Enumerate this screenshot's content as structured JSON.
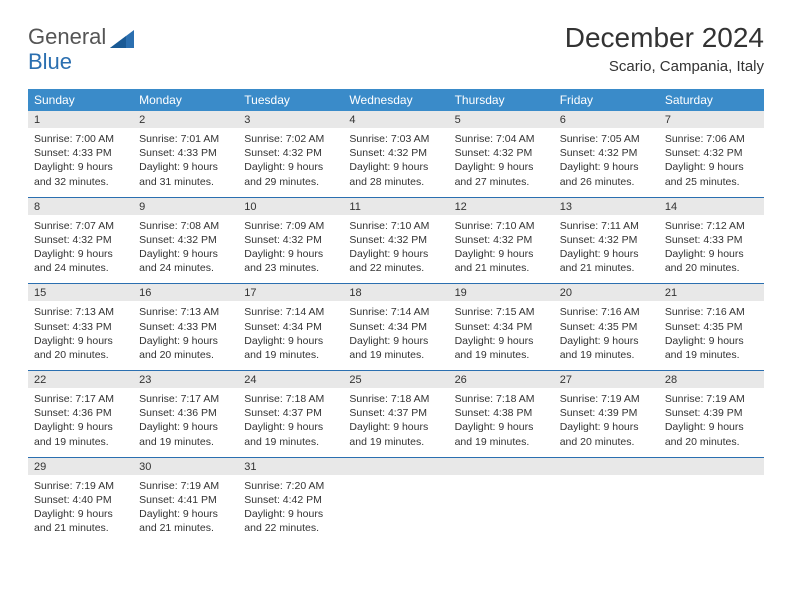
{
  "brand": {
    "word1": "General",
    "word2": "Blue"
  },
  "title": "December 2024",
  "location": "Scario, Campania, Italy",
  "colors": {
    "header_bg": "#3a8bc9",
    "rule": "#2b6fb0",
    "daynum_bg": "#e8e8e8",
    "text": "#333333"
  },
  "weekdays": [
    "Sunday",
    "Monday",
    "Tuesday",
    "Wednesday",
    "Thursday",
    "Friday",
    "Saturday"
  ],
  "weeks": [
    [
      {
        "n": "1",
        "sunrise": "Sunrise: 7:00 AM",
        "sunset": "Sunset: 4:33 PM",
        "d1": "Daylight: 9 hours",
        "d2": "and 32 minutes."
      },
      {
        "n": "2",
        "sunrise": "Sunrise: 7:01 AM",
        "sunset": "Sunset: 4:33 PM",
        "d1": "Daylight: 9 hours",
        "d2": "and 31 minutes."
      },
      {
        "n": "3",
        "sunrise": "Sunrise: 7:02 AM",
        "sunset": "Sunset: 4:32 PM",
        "d1": "Daylight: 9 hours",
        "d2": "and 29 minutes."
      },
      {
        "n": "4",
        "sunrise": "Sunrise: 7:03 AM",
        "sunset": "Sunset: 4:32 PM",
        "d1": "Daylight: 9 hours",
        "d2": "and 28 minutes."
      },
      {
        "n": "5",
        "sunrise": "Sunrise: 7:04 AM",
        "sunset": "Sunset: 4:32 PM",
        "d1": "Daylight: 9 hours",
        "d2": "and 27 minutes."
      },
      {
        "n": "6",
        "sunrise": "Sunrise: 7:05 AM",
        "sunset": "Sunset: 4:32 PM",
        "d1": "Daylight: 9 hours",
        "d2": "and 26 minutes."
      },
      {
        "n": "7",
        "sunrise": "Sunrise: 7:06 AM",
        "sunset": "Sunset: 4:32 PM",
        "d1": "Daylight: 9 hours",
        "d2": "and 25 minutes."
      }
    ],
    [
      {
        "n": "8",
        "sunrise": "Sunrise: 7:07 AM",
        "sunset": "Sunset: 4:32 PM",
        "d1": "Daylight: 9 hours",
        "d2": "and 24 minutes."
      },
      {
        "n": "9",
        "sunrise": "Sunrise: 7:08 AM",
        "sunset": "Sunset: 4:32 PM",
        "d1": "Daylight: 9 hours",
        "d2": "and 24 minutes."
      },
      {
        "n": "10",
        "sunrise": "Sunrise: 7:09 AM",
        "sunset": "Sunset: 4:32 PM",
        "d1": "Daylight: 9 hours",
        "d2": "and 23 minutes."
      },
      {
        "n": "11",
        "sunrise": "Sunrise: 7:10 AM",
        "sunset": "Sunset: 4:32 PM",
        "d1": "Daylight: 9 hours",
        "d2": "and 22 minutes."
      },
      {
        "n": "12",
        "sunrise": "Sunrise: 7:10 AM",
        "sunset": "Sunset: 4:32 PM",
        "d1": "Daylight: 9 hours",
        "d2": "and 21 minutes."
      },
      {
        "n": "13",
        "sunrise": "Sunrise: 7:11 AM",
        "sunset": "Sunset: 4:32 PM",
        "d1": "Daylight: 9 hours",
        "d2": "and 21 minutes."
      },
      {
        "n": "14",
        "sunrise": "Sunrise: 7:12 AM",
        "sunset": "Sunset: 4:33 PM",
        "d1": "Daylight: 9 hours",
        "d2": "and 20 minutes."
      }
    ],
    [
      {
        "n": "15",
        "sunrise": "Sunrise: 7:13 AM",
        "sunset": "Sunset: 4:33 PM",
        "d1": "Daylight: 9 hours",
        "d2": "and 20 minutes."
      },
      {
        "n": "16",
        "sunrise": "Sunrise: 7:13 AM",
        "sunset": "Sunset: 4:33 PM",
        "d1": "Daylight: 9 hours",
        "d2": "and 20 minutes."
      },
      {
        "n": "17",
        "sunrise": "Sunrise: 7:14 AM",
        "sunset": "Sunset: 4:34 PM",
        "d1": "Daylight: 9 hours",
        "d2": "and 19 minutes."
      },
      {
        "n": "18",
        "sunrise": "Sunrise: 7:14 AM",
        "sunset": "Sunset: 4:34 PM",
        "d1": "Daylight: 9 hours",
        "d2": "and 19 minutes."
      },
      {
        "n": "19",
        "sunrise": "Sunrise: 7:15 AM",
        "sunset": "Sunset: 4:34 PM",
        "d1": "Daylight: 9 hours",
        "d2": "and 19 minutes."
      },
      {
        "n": "20",
        "sunrise": "Sunrise: 7:16 AM",
        "sunset": "Sunset: 4:35 PM",
        "d1": "Daylight: 9 hours",
        "d2": "and 19 minutes."
      },
      {
        "n": "21",
        "sunrise": "Sunrise: 7:16 AM",
        "sunset": "Sunset: 4:35 PM",
        "d1": "Daylight: 9 hours",
        "d2": "and 19 minutes."
      }
    ],
    [
      {
        "n": "22",
        "sunrise": "Sunrise: 7:17 AM",
        "sunset": "Sunset: 4:36 PM",
        "d1": "Daylight: 9 hours",
        "d2": "and 19 minutes."
      },
      {
        "n": "23",
        "sunrise": "Sunrise: 7:17 AM",
        "sunset": "Sunset: 4:36 PM",
        "d1": "Daylight: 9 hours",
        "d2": "and 19 minutes."
      },
      {
        "n": "24",
        "sunrise": "Sunrise: 7:18 AM",
        "sunset": "Sunset: 4:37 PM",
        "d1": "Daylight: 9 hours",
        "d2": "and 19 minutes."
      },
      {
        "n": "25",
        "sunrise": "Sunrise: 7:18 AM",
        "sunset": "Sunset: 4:37 PM",
        "d1": "Daylight: 9 hours",
        "d2": "and 19 minutes."
      },
      {
        "n": "26",
        "sunrise": "Sunrise: 7:18 AM",
        "sunset": "Sunset: 4:38 PM",
        "d1": "Daylight: 9 hours",
        "d2": "and 19 minutes."
      },
      {
        "n": "27",
        "sunrise": "Sunrise: 7:19 AM",
        "sunset": "Sunset: 4:39 PM",
        "d1": "Daylight: 9 hours",
        "d2": "and 20 minutes."
      },
      {
        "n": "28",
        "sunrise": "Sunrise: 7:19 AM",
        "sunset": "Sunset: 4:39 PM",
        "d1": "Daylight: 9 hours",
        "d2": "and 20 minutes."
      }
    ],
    [
      {
        "n": "29",
        "sunrise": "Sunrise: 7:19 AM",
        "sunset": "Sunset: 4:40 PM",
        "d1": "Daylight: 9 hours",
        "d2": "and 21 minutes."
      },
      {
        "n": "30",
        "sunrise": "Sunrise: 7:19 AM",
        "sunset": "Sunset: 4:41 PM",
        "d1": "Daylight: 9 hours",
        "d2": "and 21 minutes."
      },
      {
        "n": "31",
        "sunrise": "Sunrise: 7:20 AM",
        "sunset": "Sunset: 4:42 PM",
        "d1": "Daylight: 9 hours",
        "d2": "and 22 minutes."
      },
      null,
      null,
      null,
      null
    ]
  ]
}
